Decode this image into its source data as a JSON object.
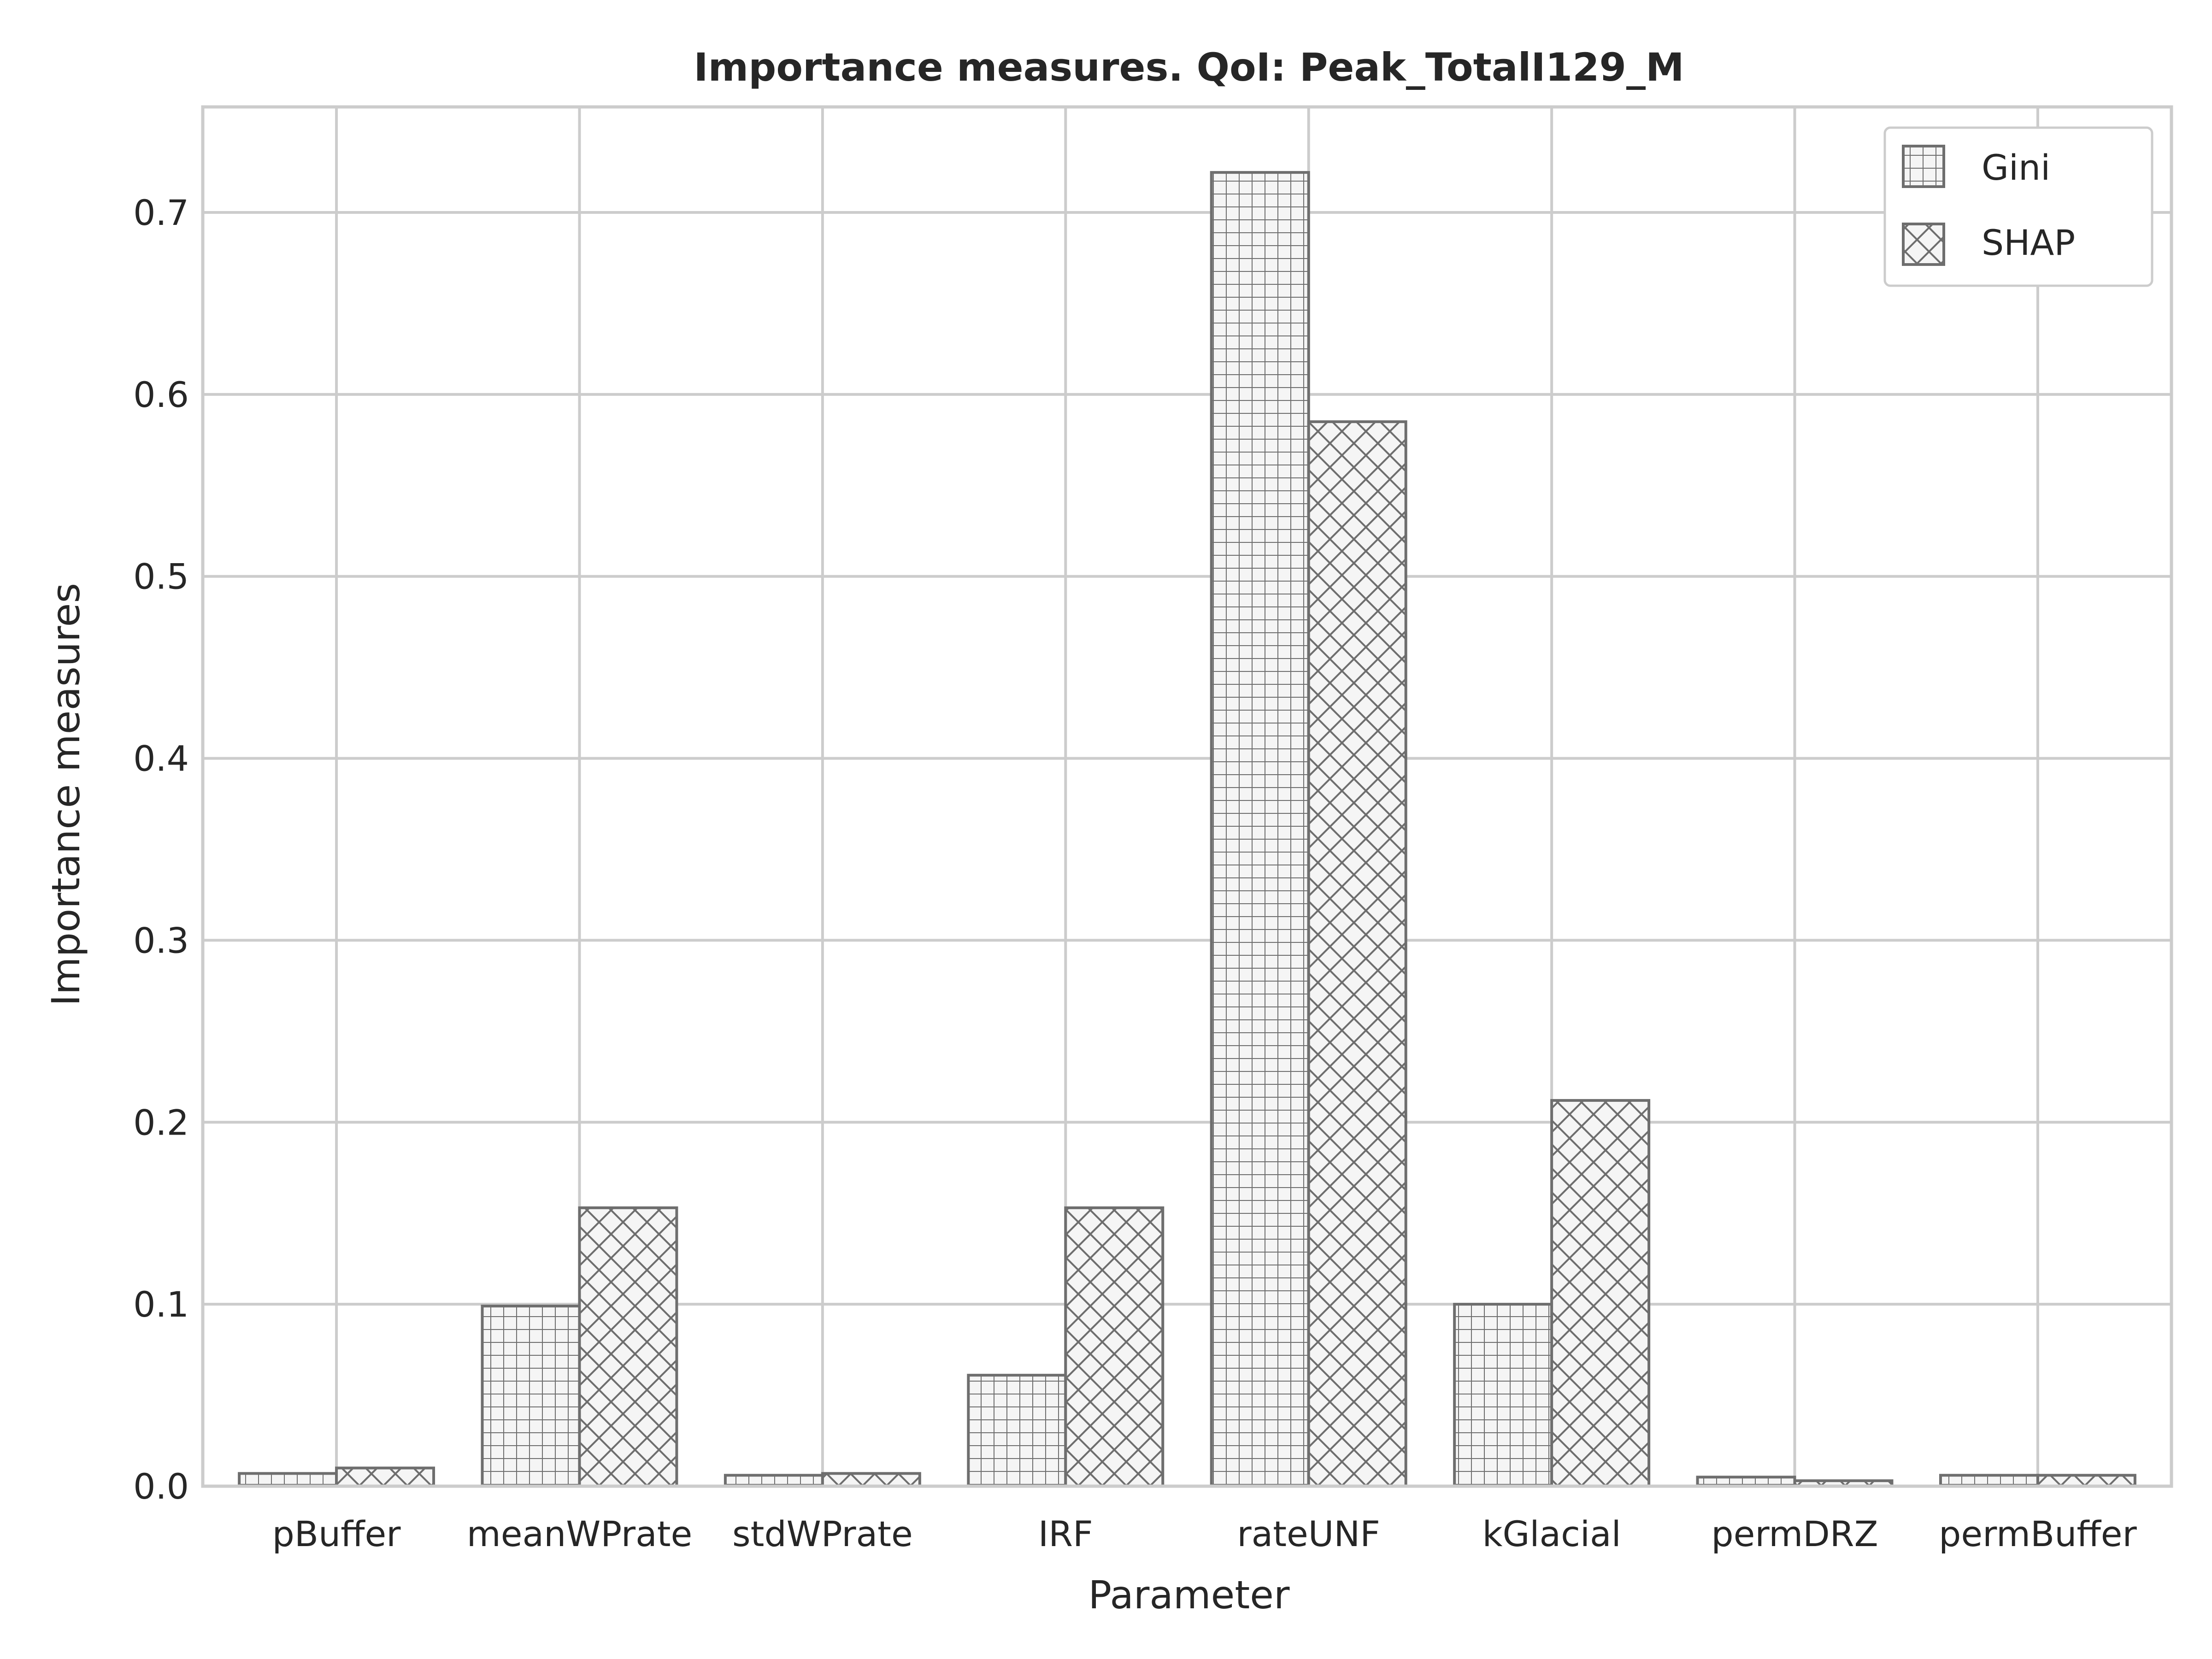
{
  "chart_data": {
    "type": "bar",
    "title": "Importance measures. QoI: Peak_TotalI129_M",
    "xlabel": "Parameter",
    "ylabel": "Importance measures",
    "categories": [
      "pBuffer",
      "meanWPrate",
      "stdWPrate",
      "IRF",
      "rateUNF",
      "kGlacial",
      "permDRZ",
      "permBuffer"
    ],
    "series": [
      {
        "name": "Gini",
        "pattern": "grid",
        "values": [
          0.007,
          0.099,
          0.006,
          0.061,
          0.722,
          0.1,
          0.005,
          0.006
        ]
      },
      {
        "name": "SHAP",
        "pattern": "crosshatch",
        "values": [
          0.01,
          0.153,
          0.007,
          0.153,
          0.585,
          0.212,
          0.003,
          0.006
        ]
      }
    ],
    "ylim": [
      0,
      0.758
    ],
    "yticks": [
      "0.0",
      "0.1",
      "0.2",
      "0.3",
      "0.4",
      "0.5",
      "0.6",
      "0.7"
    ],
    "grid": true,
    "legend_position": "top-right",
    "bar_face_color": "#f5f5f5",
    "bar_edge_color": "#6e6e6e",
    "grid_color": "#cccccc"
  }
}
